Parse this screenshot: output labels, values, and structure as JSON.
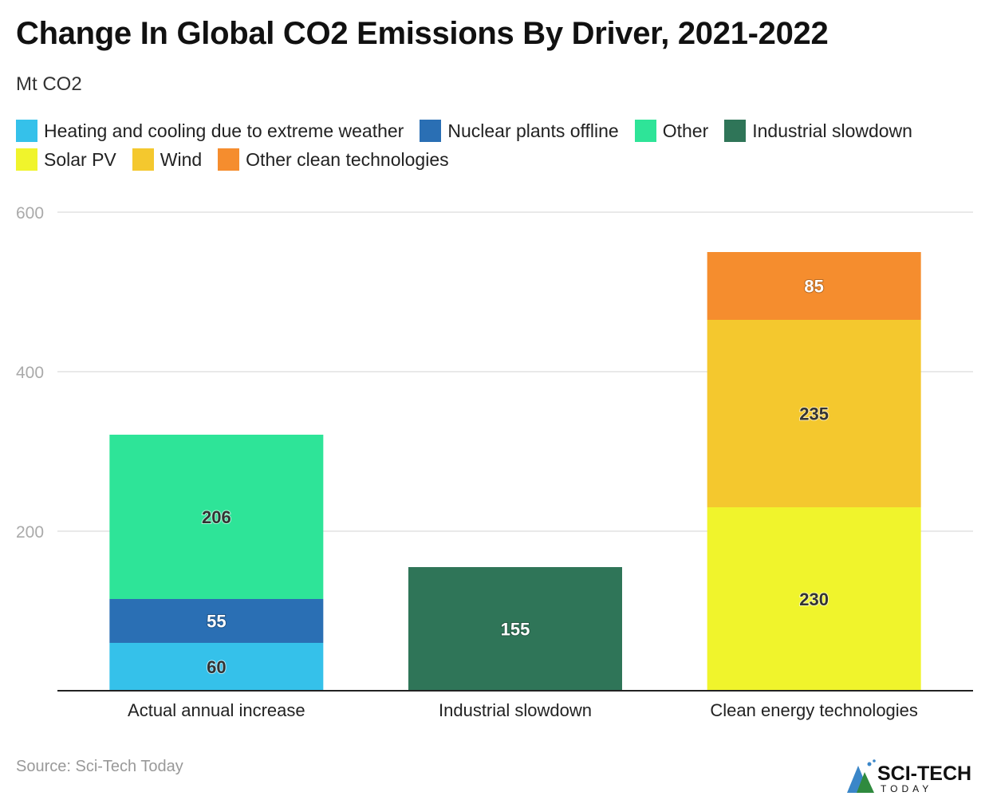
{
  "title": "Change In Global CO2 Emissions By Driver, 2021-2022",
  "subtitle": "Mt CO2",
  "source": "Source: Sci-Tech Today",
  "logo_text": "SCI-TECH TODAY",
  "chart_data": {
    "type": "bar",
    "stacked": true,
    "categories": [
      "Actual annual increase",
      "Industrial slowdown",
      "Clean energy technologies"
    ],
    "ylim": [
      0,
      600
    ],
    "yticks": [
      200,
      400,
      600
    ],
    "grid": true,
    "legend_position": "top",
    "series": [
      {
        "name": "Heating and cooling due to extreme weather",
        "color": "#35c1ea",
        "label_color": "#333333",
        "values": [
          60,
          null,
          null
        ]
      },
      {
        "name": "Nuclear plants offline",
        "color": "#2a6fb4",
        "label_color": "#ffffff",
        "values": [
          55,
          null,
          null
        ]
      },
      {
        "name": "Other",
        "color": "#2ee498",
        "label_color": "#333333",
        "values": [
          206,
          null,
          null
        ]
      },
      {
        "name": "Industrial slowdown",
        "color": "#2f7558",
        "label_color": "#ffffff",
        "values": [
          null,
          155,
          null
        ]
      },
      {
        "name": "Solar PV",
        "color": "#f0f42c",
        "label_color": "#333333",
        "values": [
          null,
          null,
          230
        ]
      },
      {
        "name": "Wind",
        "color": "#f4c82e",
        "label_color": "#333333",
        "values": [
          null,
          null,
          235
        ]
      },
      {
        "name": "Other clean technologies",
        "color": "#f58d2e",
        "label_color": "#ffffff",
        "values": [
          null,
          null,
          85
        ]
      }
    ]
  }
}
